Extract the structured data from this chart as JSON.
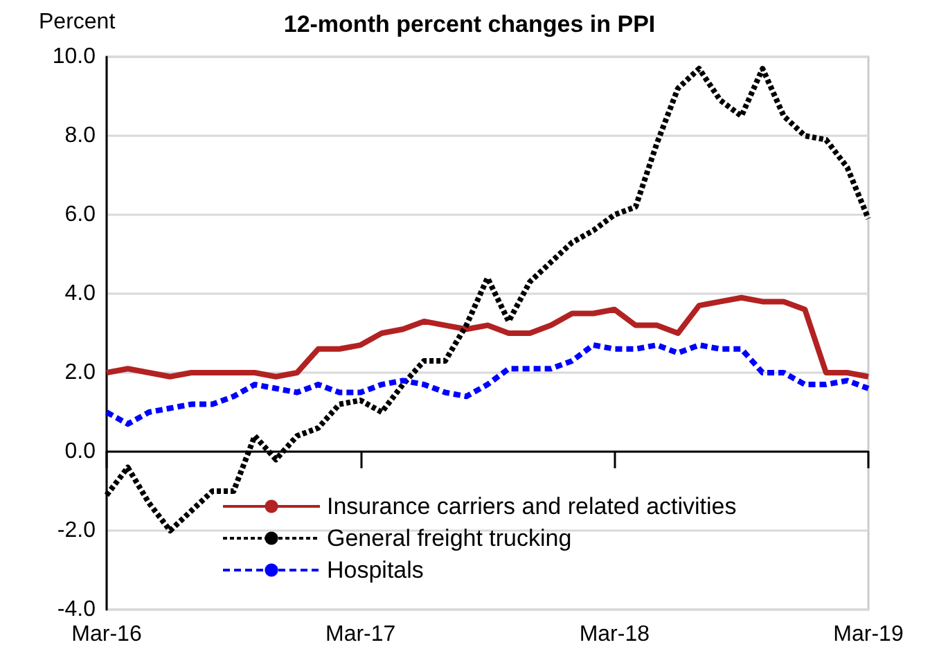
{
  "chart_data": {
    "type": "line",
    "title": "12-month percent changes in PPI",
    "ylabel": "Percent",
    "categories": [
      "Mar-16",
      null,
      null,
      null,
      null,
      null,
      null,
      null,
      null,
      null,
      null,
      null,
      "Mar-17",
      null,
      null,
      null,
      null,
      null,
      null,
      null,
      null,
      null,
      null,
      null,
      "Mar-18",
      null,
      null,
      null,
      null,
      null,
      null,
      null,
      null,
      null,
      null,
      null,
      "Mar-19"
    ],
    "series": [
      {
        "name": "Insurance carriers and related activities",
        "color": "#b22222",
        "line_style": "solid",
        "values": [
          2.0,
          2.1,
          2.0,
          1.9,
          2.0,
          2.0,
          2.0,
          2.0,
          1.9,
          2.0,
          2.6,
          2.6,
          2.7,
          3.0,
          3.1,
          3.3,
          3.2,
          3.1,
          3.2,
          3.0,
          3.0,
          3.2,
          3.5,
          3.5,
          3.6,
          3.2,
          3.2,
          3.0,
          3.7,
          3.8,
          3.9,
          3.8,
          3.8,
          3.6,
          2.0,
          2.0,
          1.9
        ]
      },
      {
        "name": "General freight trucking",
        "color": "#000000",
        "line_style": "dashed",
        "values": [
          -1.1,
          -0.4,
          -1.3,
          -2.0,
          -1.5,
          -1.0,
          -1.0,
          0.4,
          -0.2,
          0.4,
          0.6,
          1.2,
          1.3,
          1.0,
          1.7,
          2.3,
          2.3,
          3.2,
          4.4,
          3.3,
          4.3,
          4.8,
          5.3,
          5.6,
          6.0,
          6.2,
          7.8,
          9.2,
          9.7,
          8.9,
          8.5,
          9.7,
          8.5,
          8.0,
          7.9,
          7.2,
          5.9
        ]
      },
      {
        "name": "Hospitals",
        "color": "#0000ff",
        "line_style": "dashed",
        "values": [
          1.0,
          0.7,
          1.0,
          1.1,
          1.2,
          1.2,
          1.4,
          1.7,
          1.6,
          1.5,
          1.7,
          1.5,
          1.5,
          1.7,
          1.8,
          1.7,
          1.5,
          1.4,
          1.7,
          2.1,
          2.1,
          2.1,
          2.3,
          2.7,
          2.6,
          2.6,
          2.7,
          2.5,
          2.7,
          2.6,
          2.6,
          2.0,
          2.0,
          1.7,
          1.7,
          1.8,
          1.6
        ]
      }
    ],
    "ylim": [
      -4,
      10
    ],
    "yticks": [
      {
        "value": -4,
        "label": "-4.0"
      },
      {
        "value": -2,
        "label": "-2.0"
      },
      {
        "value": 0,
        "label": "0.0"
      },
      {
        "value": 2,
        "label": "2.0"
      },
      {
        "value": 4,
        "label": "4.0"
      },
      {
        "value": 6,
        "label": "6.0"
      },
      {
        "value": 8,
        "label": "8.0"
      },
      {
        "value": 10,
        "label": "10.0"
      }
    ],
    "grid": "y",
    "legend": "bottom",
    "marker": "none"
  }
}
